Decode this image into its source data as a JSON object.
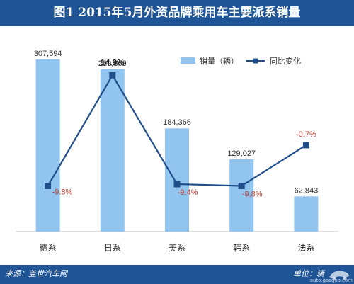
{
  "title": "图1  2015年5月外资品牌乘用车主要派系销量",
  "chart_data": {
    "type": "bar",
    "categories": [
      "德系",
      "日系",
      "美系",
      "韩系",
      "法系"
    ],
    "series": [
      {
        "name": "销量（辆）",
        "type": "bar",
        "values": [
          307594,
          289869,
          184366,
          129027,
          62843
        ],
        "labels": [
          "307,594",
          "289,869",
          "184,366",
          "129,027",
          "62,843"
        ],
        "color": "#92c4f0"
      },
      {
        "name": "同比变化",
        "type": "line",
        "values": [
          -9.8,
          14.9,
          -9.4,
          -9.8,
          -0.7
        ],
        "labels": [
          "-9.8%",
          "14.9%",
          "-9.4%",
          "-9.8%",
          "-0.7%"
        ],
        "color": "#1f4e8a"
      }
    ],
    "bar_ylim": [
      0,
      320000
    ],
    "line_ylim": [
      -20,
      20
    ],
    "legend_position": "top-right",
    "grid": false
  },
  "footer": {
    "source": "来源：盖世汽车网",
    "unit": "单位：辆",
    "site": "auto.gasgoo.com"
  }
}
